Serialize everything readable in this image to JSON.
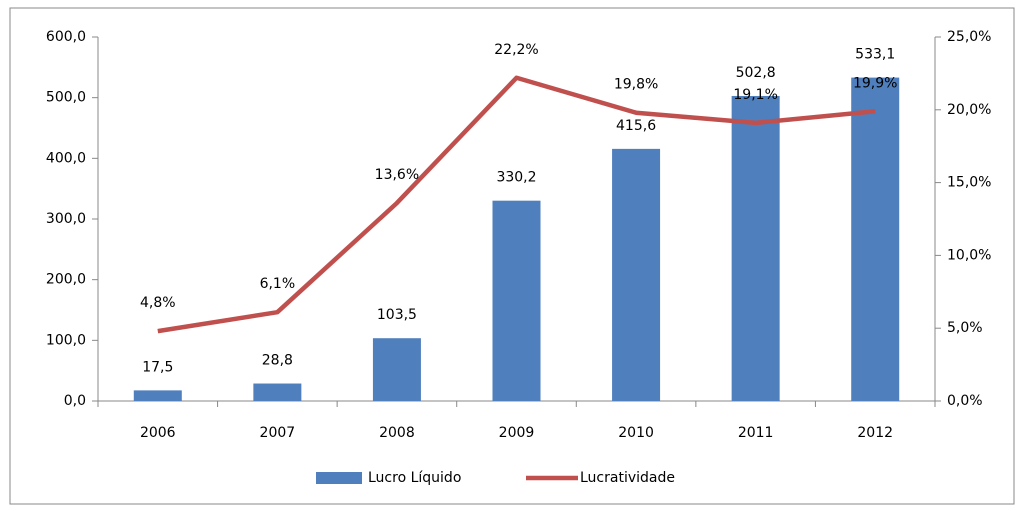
{
  "chart_data": {
    "type": "bar",
    "categories": [
      "2006",
      "2007",
      "2008",
      "2009",
      "2010",
      "2011",
      "2012"
    ],
    "series": [
      {
        "name": "Lucro Líquido",
        "type": "bar",
        "color": "#4f7fbc",
        "values": [
          17.5,
          28.8,
          103.5,
          330.2,
          415.6,
          502.8,
          533.1
        ],
        "value_labels": [
          "17,5",
          "28,8",
          "103,5",
          "330,2",
          "415,6",
          "502,8",
          "533,1"
        ]
      },
      {
        "name": "Lucratividade",
        "type": "line",
        "axis": "y2",
        "color": "#c0504d",
        "values": [
          4.8,
          6.1,
          13.6,
          22.2,
          19.8,
          19.1,
          19.9
        ],
        "value_labels": [
          "4,8%",
          "6,1%",
          "13,6%",
          "22,2%",
          "19,8%",
          "19,1%",
          "19,9%"
        ]
      }
    ],
    "ylim": [
      0,
      600
    ],
    "yticks": [
      {
        "value": 0,
        "label": "0,0"
      },
      {
        "value": 100,
        "label": "100,0"
      },
      {
        "value": 200,
        "label": "200,0"
      },
      {
        "value": 300,
        "label": "300,0"
      },
      {
        "value": 400,
        "label": "400,0"
      },
      {
        "value": 500,
        "label": "500,0"
      },
      {
        "value": 600,
        "label": "600,0"
      }
    ],
    "y2lim": [
      0,
      25
    ],
    "y2ticks": [
      {
        "value": 0,
        "label": "0,0%"
      },
      {
        "value": 5,
        "label": "5,0%"
      },
      {
        "value": 10,
        "label": "10,0%"
      },
      {
        "value": 15,
        "label": "15,0%"
      },
      {
        "value": 20,
        "label": "20,0%"
      },
      {
        "value": 25,
        "label": "25,0%"
      }
    ],
    "legend": "bottom"
  }
}
